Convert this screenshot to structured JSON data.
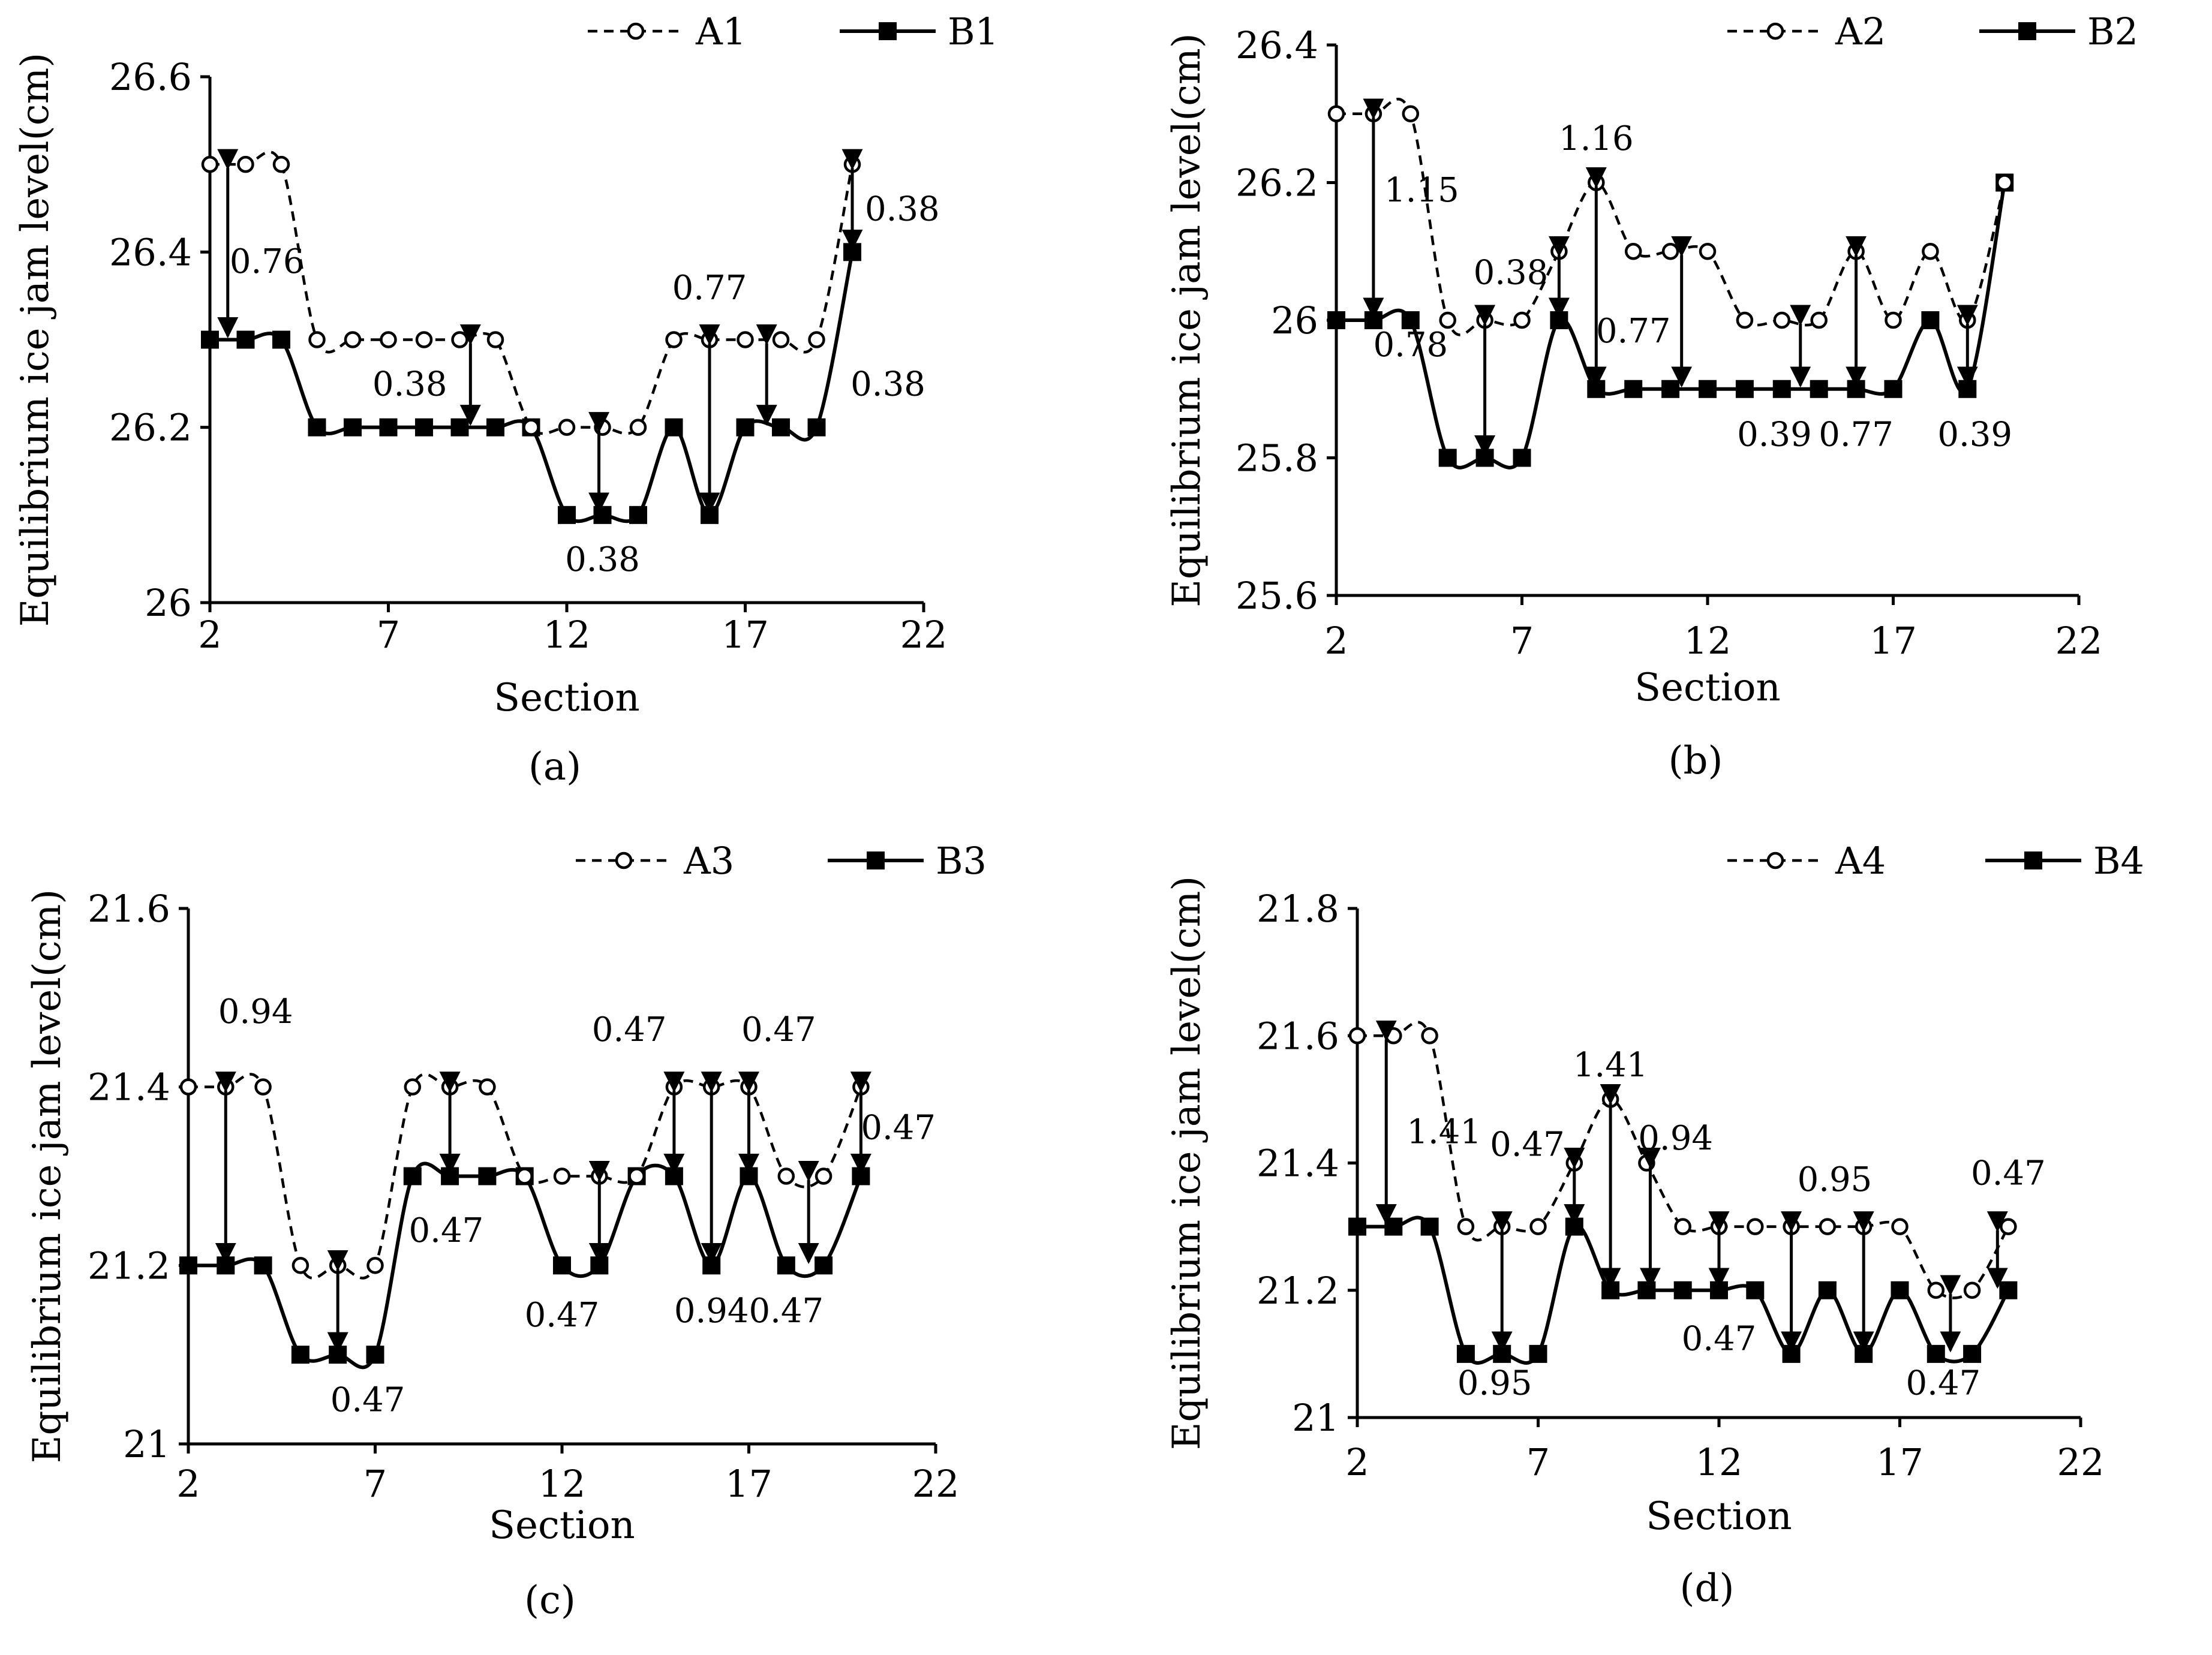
{
  "chart_data": [
    {
      "type": "line",
      "panel_label": "(a)",
      "xlabel": "Section",
      "ylabel": "Equilibrium ice jam level(cm)",
      "xlim": [
        2,
        22
      ],
      "ylim": [
        26,
        26.6
      ],
      "xticks": [
        "2",
        "7",
        "12",
        "17",
        "22"
      ],
      "yticks": [
        "26",
        "26.2",
        "26.4",
        "26.6"
      ],
      "legend": "top-right",
      "x": [
        2,
        3,
        4,
        5,
        6,
        7,
        8,
        9,
        10,
        11,
        12,
        13,
        14,
        15,
        16,
        17,
        18,
        19,
        20
      ],
      "series": [
        {
          "name": "A1",
          "style": "dashed-open-circle",
          "values": [
            26.5,
            26.5,
            26.5,
            26.3,
            26.3,
            26.3,
            26.3,
            26.3,
            26.3,
            26.2,
            26.2,
            26.2,
            26.2,
            26.3,
            26.3,
            26.3,
            26.3,
            26.3,
            26.5
          ]
        },
        {
          "name": "B1",
          "style": "solid-filled-square",
          "values": [
            26.3,
            26.3,
            26.3,
            26.2,
            26.2,
            26.2,
            26.2,
            26.2,
            26.2,
            26.2,
            26.1,
            26.1,
            26.1,
            26.2,
            26.1,
            26.2,
            26.2,
            26.2,
            26.4
          ]
        }
      ],
      "arrows": [
        {
          "x": 2.5,
          "y1": 26.5,
          "y2": 26.3
        },
        {
          "x": 9.3,
          "y1": 26.3,
          "y2": 26.2
        },
        {
          "x": 12.9,
          "y1": 26.2,
          "y2": 26.1
        },
        {
          "x": 16.0,
          "y1": 26.3,
          "y2": 26.1
        },
        {
          "x": 17.6,
          "y1": 26.3,
          "y2": 26.2
        },
        {
          "x": 20.0,
          "y1": 26.5,
          "y2": 26.4
        }
      ],
      "annotations": [
        {
          "text": "0.76",
          "x": 3.6,
          "y": 26.39
        },
        {
          "text": "0.38",
          "x": 7.6,
          "y": 26.25
        },
        {
          "text": "0.38",
          "x": 13.0,
          "y": 26.05
        },
        {
          "text": "0.77",
          "x": 16.0,
          "y": 26.36
        },
        {
          "text": "0.38",
          "x": 21.0,
          "y": 26.25
        },
        {
          "text": "0.38",
          "x": 21.4,
          "y": 26.45
        }
      ]
    },
    {
      "type": "line",
      "panel_label": "(b)",
      "xlabel": "Section",
      "ylabel": "Equilibrium ice jam level(cm)",
      "xlim": [
        2,
        22
      ],
      "ylim": [
        25.6,
        26.4
      ],
      "xticks": [
        "2",
        "7",
        "12",
        "17",
        "22"
      ],
      "yticks": [
        "25.6",
        "25.8",
        "26",
        "26.2",
        "26.4"
      ],
      "legend": "top-right",
      "x": [
        2,
        3,
        4,
        5,
        6,
        7,
        8,
        9,
        10,
        11,
        12,
        13,
        14,
        15,
        16,
        17,
        18,
        19,
        20
      ],
      "series": [
        {
          "name": "A2",
          "style": "dashed-open-circle",
          "values": [
            26.3,
            26.3,
            26.3,
            26.0,
            26.0,
            26.0,
            26.1,
            26.2,
            26.1,
            26.1,
            26.1,
            26.0,
            26.0,
            26.0,
            26.1,
            26.0,
            26.1,
            26.0,
            26.2
          ]
        },
        {
          "name": "B2",
          "style": "solid-filled-square",
          "values": [
            26.0,
            26.0,
            26.0,
            25.8,
            25.8,
            25.8,
            26.0,
            25.9,
            25.9,
            25.9,
            25.9,
            25.9,
            25.9,
            25.9,
            25.9,
            25.9,
            26.0,
            25.9,
            26.2
          ]
        }
      ],
      "arrows": [
        {
          "x": 3.0,
          "y1": 26.3,
          "y2": 26.0
        },
        {
          "x": 6.0,
          "y1": 26.0,
          "y2": 25.8
        },
        {
          "x": 8.0,
          "y1": 26.1,
          "y2": 26.0
        },
        {
          "x": 9.0,
          "y1": 26.2,
          "y2": 25.9
        },
        {
          "x": 11.3,
          "y1": 26.1,
          "y2": 25.9
        },
        {
          "x": 14.5,
          "y1": 26.0,
          "y2": 25.9
        },
        {
          "x": 16.0,
          "y1": 26.1,
          "y2": 25.9
        },
        {
          "x": 19.0,
          "y1": 26.0,
          "y2": 25.9
        }
      ],
      "annotations": [
        {
          "text": "1.15",
          "x": 4.3,
          "y": 26.19
        },
        {
          "text": "0.38",
          "x": 6.7,
          "y": 26.07
        },
        {
          "text": "1.16",
          "x": 9.0,
          "y": 26.265
        },
        {
          "text": "0.77",
          "x": 10.0,
          "y": 25.985
        },
        {
          "text": "0.78",
          "x": 4.0,
          "y": 25.965
        },
        {
          "text": "0.39",
          "x": 13.8,
          "y": 25.835
        },
        {
          "text": "0.77",
          "x": 16.0,
          "y": 25.835
        },
        {
          "text": "0.39",
          "x": 19.2,
          "y": 25.835
        }
      ]
    },
    {
      "type": "line",
      "panel_label": "(c)",
      "xlabel": "Section",
      "ylabel": "Equilibrium ice jam level(cm)",
      "xlim": [
        2,
        22
      ],
      "ylim": [
        21,
        21.6
      ],
      "xticks": [
        "2",
        "7",
        "12",
        "17",
        "22"
      ],
      "yticks": [
        "21",
        "21.2",
        "21.4",
        "21.6"
      ],
      "legend": "top-right",
      "x": [
        2,
        3,
        4,
        5,
        6,
        7,
        8,
        9,
        10,
        11,
        12,
        13,
        14,
        15,
        16,
        17,
        18,
        19,
        20
      ],
      "series": [
        {
          "name": "A3",
          "style": "dashed-open-circle",
          "values": [
            21.4,
            21.4,
            21.4,
            21.2,
            21.2,
            21.2,
            21.4,
            21.4,
            21.4,
            21.3,
            21.3,
            21.3,
            21.3,
            21.4,
            21.4,
            21.4,
            21.3,
            21.3,
            21.4
          ]
        },
        {
          "name": "B3",
          "style": "solid-filled-square",
          "values": [
            21.2,
            21.2,
            21.2,
            21.1,
            21.1,
            21.1,
            21.3,
            21.3,
            21.3,
            21.3,
            21.2,
            21.2,
            21.3,
            21.3,
            21.2,
            21.3,
            21.2,
            21.2,
            21.3
          ]
        }
      ],
      "arrows": [
        {
          "x": 3.0,
          "y1": 21.4,
          "y2": 21.2
        },
        {
          "x": 6.0,
          "y1": 21.2,
          "y2": 21.1
        },
        {
          "x": 9.0,
          "y1": 21.4,
          "y2": 21.3
        },
        {
          "x": 13.0,
          "y1": 21.3,
          "y2": 21.2
        },
        {
          "x": 15.0,
          "y1": 21.4,
          "y2": 21.3
        },
        {
          "x": 16.0,
          "y1": 21.4,
          "y2": 21.2
        },
        {
          "x": 17.0,
          "y1": 21.4,
          "y2": 21.3
        },
        {
          "x": 18.6,
          "y1": 21.3,
          "y2": 21.2
        },
        {
          "x": 20.0,
          "y1": 21.4,
          "y2": 21.3
        }
      ],
      "annotations": [
        {
          "text": "0.94",
          "x": 3.8,
          "y": 21.485
        },
        {
          "text": "0.47",
          "x": 6.8,
          "y": 21.05
        },
        {
          "text": "0.47",
          "x": 8.9,
          "y": 21.24
        },
        {
          "text": "0.47",
          "x": 12.0,
          "y": 21.145
        },
        {
          "text": "0.47",
          "x": 13.8,
          "y": 21.465
        },
        {
          "text": "0.94",
          "x": 16.0,
          "y": 21.15
        },
        {
          "text": "0.47",
          "x": 17.8,
          "y": 21.465
        },
        {
          "text": "0.47",
          "x": 18.0,
          "y": 21.15
        },
        {
          "text": "0.47",
          "x": 21.0,
          "y": 21.355
        }
      ]
    },
    {
      "type": "line",
      "panel_label": "(d)",
      "xlabel": "Section",
      "ylabel": "Equilibrium ice jam level(cm)",
      "xlim": [
        2,
        22
      ],
      "ylim": [
        21,
        21.8
      ],
      "xticks": [
        "2",
        "7",
        "12",
        "17",
        "22"
      ],
      "yticks": [
        "21",
        "21.2",
        "21.4",
        "21.6",
        "21.8"
      ],
      "legend": "top-right",
      "x": [
        2,
        3,
        4,
        5,
        6,
        7,
        8,
        9,
        10,
        11,
        12,
        13,
        14,
        15,
        16,
        17,
        18,
        19,
        20
      ],
      "series": [
        {
          "name": "A4",
          "style": "dashed-open-circle",
          "values": [
            21.6,
            21.6,
            21.6,
            21.3,
            21.3,
            21.3,
            21.4,
            21.5,
            21.4,
            21.3,
            21.3,
            21.3,
            21.3,
            21.3,
            21.3,
            21.3,
            21.2,
            21.2,
            21.3
          ]
        },
        {
          "name": "B4",
          "style": "solid-filled-square",
          "values": [
            21.3,
            21.3,
            21.3,
            21.1,
            21.1,
            21.1,
            21.3,
            21.2,
            21.2,
            21.2,
            21.2,
            21.2,
            21.1,
            21.2,
            21.1,
            21.2,
            21.1,
            21.1,
            21.2
          ]
        }
      ],
      "arrows": [
        {
          "x": 2.8,
          "y1": 21.6,
          "y2": 21.3
        },
        {
          "x": 6.0,
          "y1": 21.3,
          "y2": 21.1
        },
        {
          "x": 8.0,
          "y1": 21.4,
          "y2": 21.3
        },
        {
          "x": 9.0,
          "y1": 21.5,
          "y2": 21.2
        },
        {
          "x": 10.1,
          "y1": 21.4,
          "y2": 21.2
        },
        {
          "x": 12.0,
          "y1": 21.3,
          "y2": 21.2
        },
        {
          "x": 14.0,
          "y1": 21.3,
          "y2": 21.1
        },
        {
          "x": 16.0,
          "y1": 21.3,
          "y2": 21.1
        },
        {
          "x": 18.4,
          "y1": 21.2,
          "y2": 21.1
        },
        {
          "x": 19.7,
          "y1": 21.3,
          "y2": 21.2
        }
      ],
      "annotations": [
        {
          "text": "1.41",
          "x": 4.4,
          "y": 21.45
        },
        {
          "text": "0.47",
          "x": 6.7,
          "y": 21.43
        },
        {
          "text": "1.41",
          "x": 9.0,
          "y": 21.555
        },
        {
          "text": "0.94",
          "x": 10.8,
          "y": 21.44
        },
        {
          "text": "0.95",
          "x": 5.8,
          "y": 21.055
        },
        {
          "text": "0.47",
          "x": 12.0,
          "y": 21.125
        },
        {
          "text": "0.95",
          "x": 15.2,
          "y": 21.375
        },
        {
          "text": "0.47",
          "x": 18.2,
          "y": 21.055
        },
        {
          "text": "0.47",
          "x": 20.0,
          "y": 21.385
        }
      ]
    }
  ]
}
